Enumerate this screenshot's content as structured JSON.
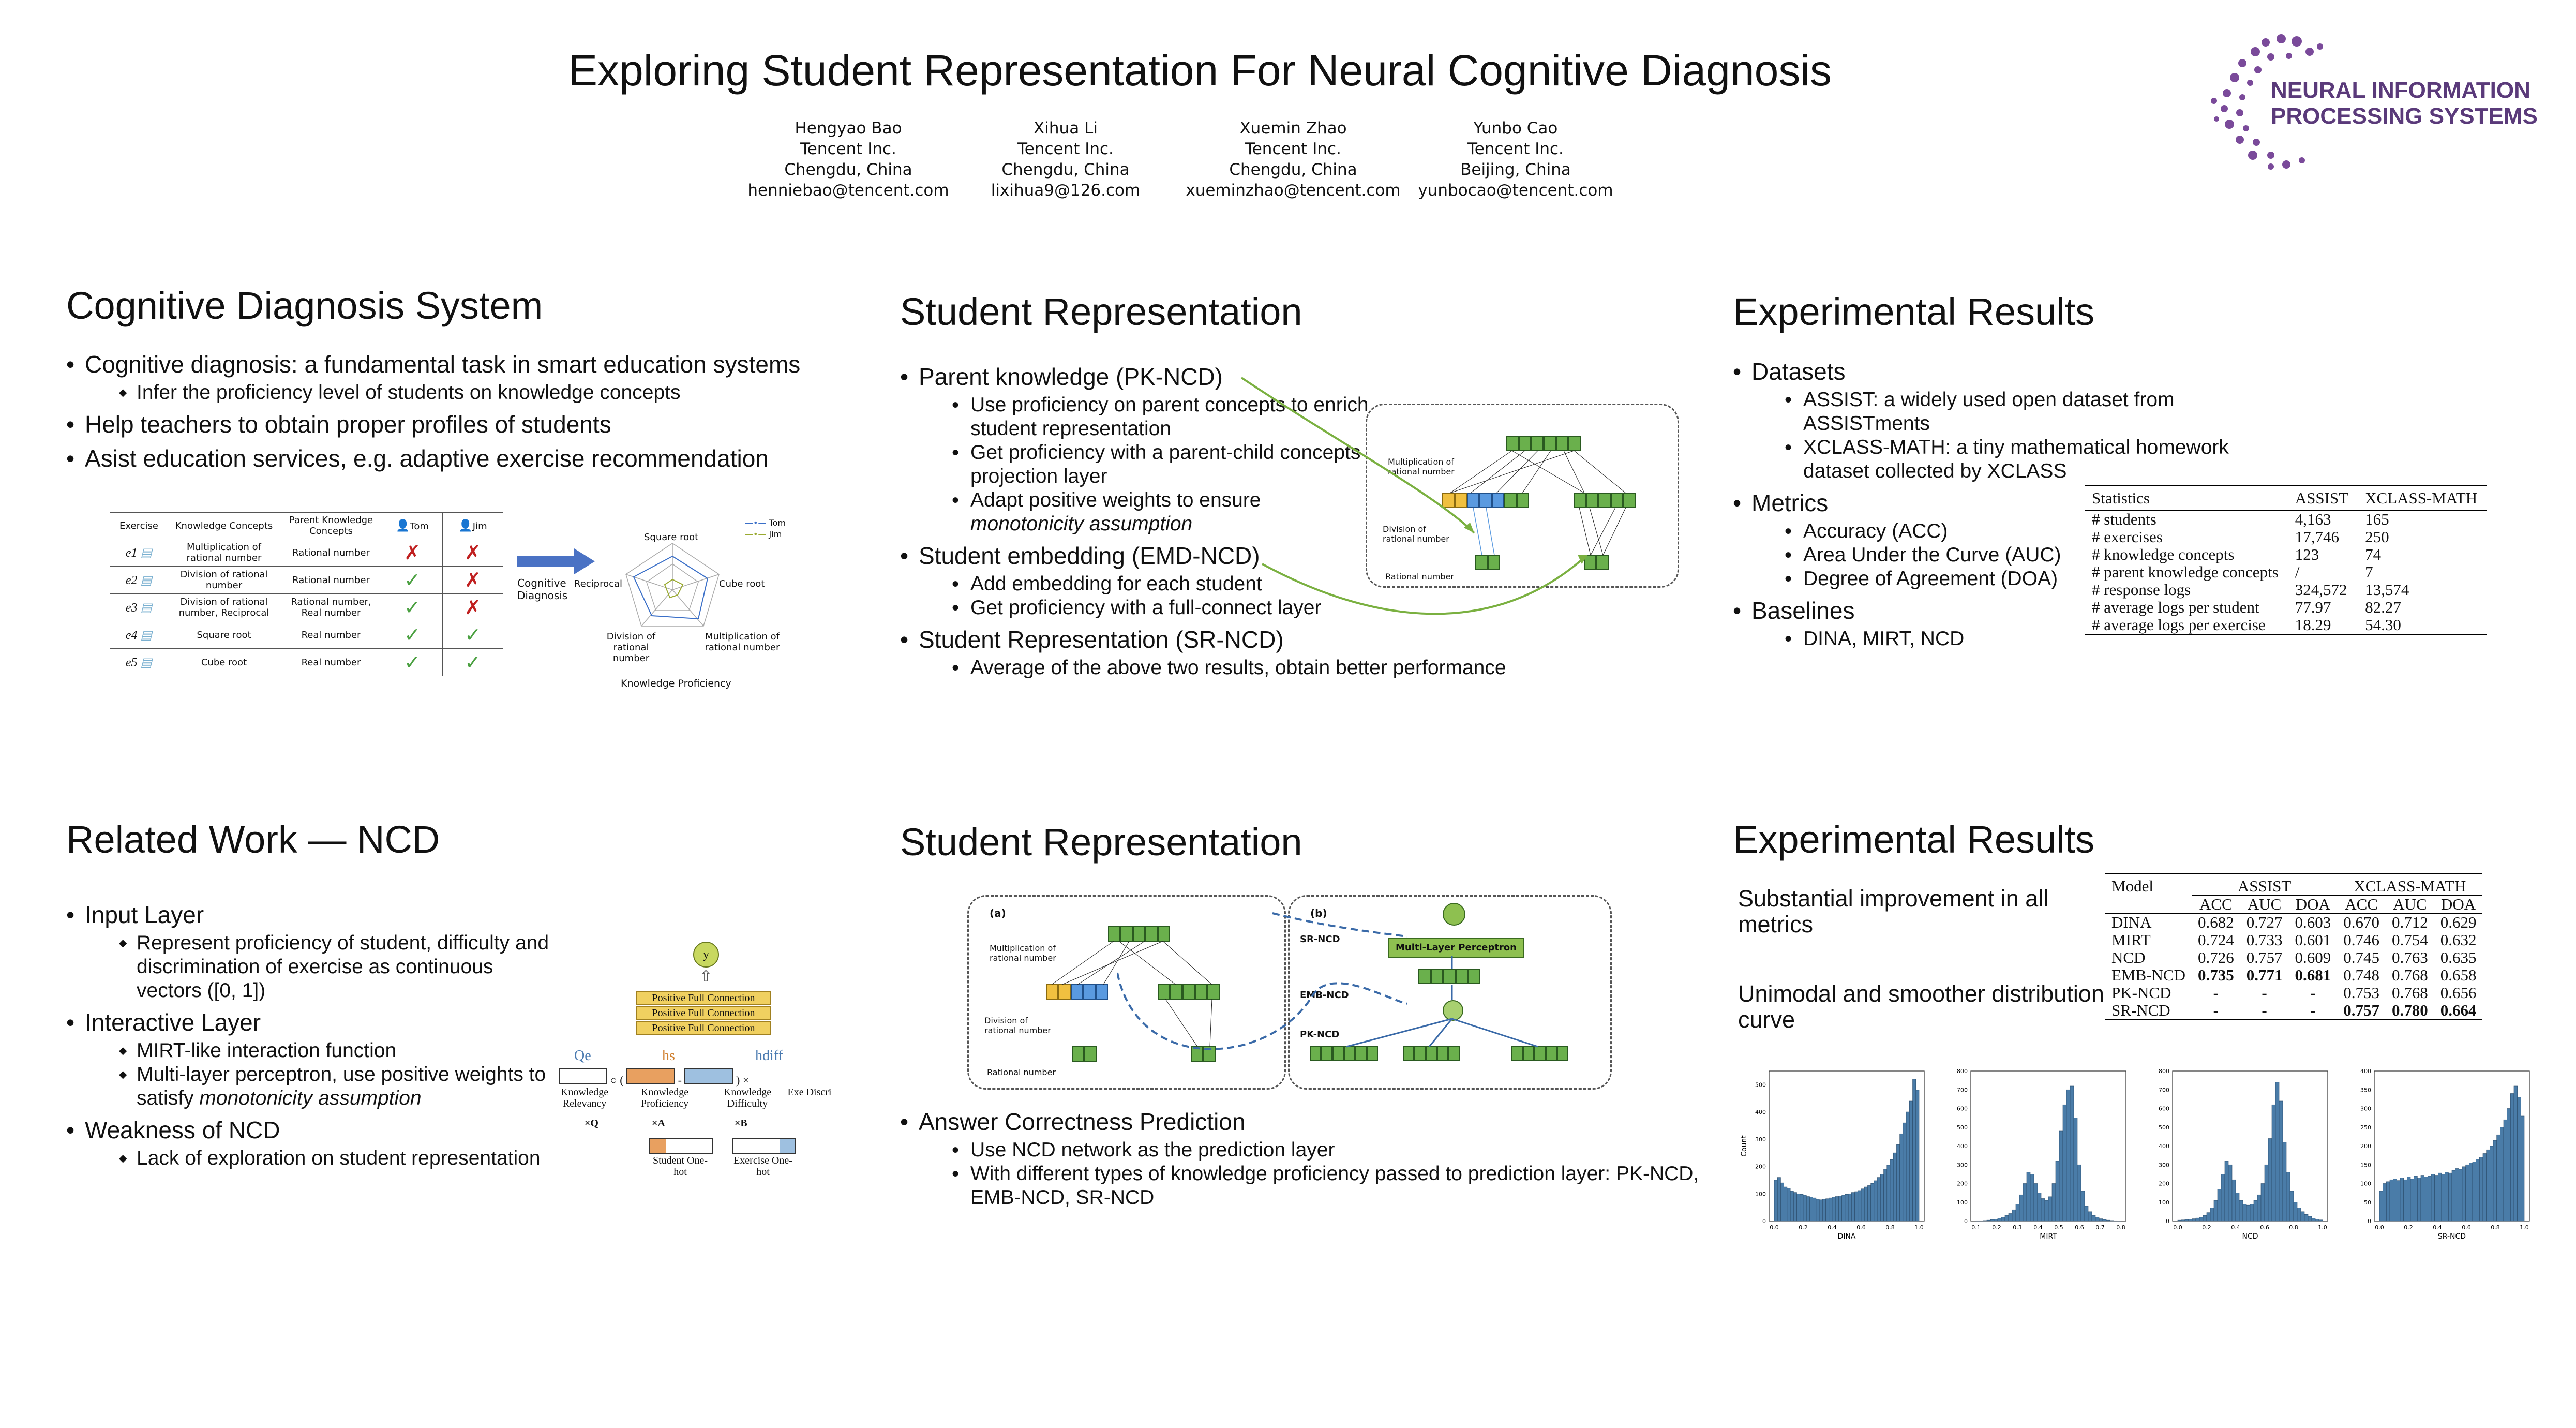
{
  "title": "Exploring Student Representation For Neural Cognitive Diagnosis",
  "authors": [
    {
      "name": "Hengyao Bao",
      "org": "Tencent Inc.",
      "city": "Chengdu, China",
      "email": "henniebao@tencent.com"
    },
    {
      "name": "Xihua Li",
      "org": "Tencent Inc.",
      "city": "Chengdu, China",
      "email": "lixihua9@126.com"
    },
    {
      "name": "Xuemin Zhao",
      "org": "Tencent Inc.",
      "city": "Chengdu, China",
      "email": "xueminzhao@tencent.com"
    },
    {
      "name": "Yunbo Cao",
      "org": "Tencent Inc.",
      "city": "Beijing, China",
      "email": "yunbocao@tencent.com"
    }
  ],
  "logo": {
    "line1": "NEURAL INFORMATION",
    "line2": "PROCESSING SYSTEMS",
    "color": "#7a4a9a"
  },
  "cds": {
    "heading": "Cognitive Diagnosis System",
    "b1": "Cognitive diagnosis: a fundamental task in smart education systems",
    "b1a": "Infer the proficiency level of students on knowledge concepts",
    "b2": "Help teachers to obtain proper profiles of students",
    "b3": "Asist education services, e.g. adaptive exercise recommendation",
    "table_headers": [
      "Exercise",
      "Knowledge Concepts",
      "Parent Knowledge Concepts",
      "Tom",
      "Jim"
    ],
    "table_rows": [
      {
        "ex": "e1",
        "kc": "Multiplication of rational number",
        "pkc": "Rational number",
        "tom": "✗",
        "jim": "✗"
      },
      {
        "ex": "e2",
        "kc": "Division of rational number",
        "pkc": "Rational number",
        "tom": "✓",
        "jim": "✗"
      },
      {
        "ex": "e3",
        "kc": "Division of rational number, Reciprocal",
        "pkc": "Rational number, Real number",
        "tom": "✓",
        "jim": "✗"
      },
      {
        "ex": "e4",
        "kc": "Square root",
        "pkc": "Real number",
        "tom": "✓",
        "jim": "✓"
      },
      {
        "ex": "e5",
        "kc": "Cube root",
        "pkc": "Real number",
        "tom": "✓",
        "jim": "✓"
      }
    ],
    "arrow_label": "Cognitive Diagnosis",
    "radar_axes": [
      "Square root",
      "Cube root",
      "Multiplication of rational number",
      "Division of rational number",
      "Reciprocal"
    ],
    "radar_legend": [
      "Tom",
      "Jim"
    ],
    "radar_caption": "Knowledge Proficiency"
  },
  "rw": {
    "heading": "Related Work — NCD",
    "input": "Input Layer",
    "input_a": "Represent proficiency of student, difficulty and discrimination of exercise as continuous vectors ([0, 1])",
    "inter": "Interactive Layer",
    "inter_a": "MIRT-like interaction function",
    "inter_b1": "Multi-layer perceptron, use positive weights to satisfy ",
    "inter_b2": "monotonicity assumption",
    "weak": "Weakness of NCD",
    "weak_a": "Lack of exploration on student representation",
    "diagram": {
      "y": "y",
      "pfc": "Positive Full Connection",
      "q": "Qe",
      "hs": "hs",
      "hdiff": "hdiff",
      "kr": "Knowledge Relevancy",
      "kp": "Knowledge Proficiency",
      "kd": "Knowledge Difficulty",
      "exd": "Exe Discri",
      "xq": "×Q",
      "xa": "×A",
      "xb": "×B",
      "so": "Student One-hot",
      "eo": "Exercise One-hot"
    }
  },
  "sr1": {
    "heading": "Student Representation",
    "pk": "Parent knowledge (PK-NCD)",
    "pk_a": "Use proficiency on parent concepts to enrich student representation",
    "pk_b": "Get proficiency with a parent-child concepts projection layer",
    "pk_c": "Adapt positive weights to ensure ",
    "pk_c2": "monotonicity assumption",
    "emb": "Student embedding (EMD-NCD)",
    "emb_a": "Add embedding for each student",
    "emb_b": "Get proficiency with a full-connect layer",
    "sr": "Student Representation (SR-NCD)",
    "sr_a": "Average of the above two results, obtain better performance",
    "fig_labels": [
      "Multiplication of rational number",
      "Division of rational number",
      "Rational number"
    ]
  },
  "sr2": {
    "heading": "Student Representation",
    "acp": "Answer Correctness Prediction",
    "acp_a": "Use NCD network as the prediction layer",
    "acp_b": "With different types of  knowledge proficiency passed to prediction layer: PK-NCD, EMB-NCD, SR-NCD",
    "fig": {
      "a": "(a)",
      "b": "(b)",
      "mlp": "Multi-Layer Perceptron",
      "srncd": "SR-NCD",
      "embncd": "EMB-NCD",
      "pkncd": "PK-NCD",
      "labels": [
        "Multiplication of rational number",
        "Division of rational number",
        "Rational number"
      ]
    }
  },
  "er1": {
    "heading": "Experimental Results",
    "datasets": "Datasets",
    "d_a": "ASSIST: a widely used open dataset from ASSISTments",
    "d_b": "XCLASS-MATH: a tiny mathematical homework dataset collected by XCLASS",
    "metrics": "Metrics",
    "m_a": "Accuracy (ACC)",
    "m_b": "Area Under the Curve (AUC)",
    "m_c": "Degree of Agreement (DOA)",
    "baselines": "Baselines",
    "b_a": "DINA, MIRT, NCD",
    "stats_headers": [
      "Statistics",
      "ASSIST",
      "XCLASS-MATH"
    ],
    "stats_rows": [
      [
        "# students",
        "4,163",
        "165"
      ],
      [
        "# exercises",
        "17,746",
        "250"
      ],
      [
        "# knowledge concepts",
        "123",
        "74"
      ],
      [
        "# parent knowledge concepts",
        "/",
        "7"
      ],
      [
        "# response logs",
        "324,572",
        "13,574"
      ],
      [
        "# average logs per student",
        "77.97",
        "82.27"
      ],
      [
        "# average logs per exercise",
        "18.29",
        "54.30"
      ]
    ]
  },
  "er2": {
    "heading": "Experimental Results",
    "p1": "Substantial improvement in all metrics",
    "p2": "Unimodal and smoother distribution curve",
    "res_model": "Model",
    "res_groups": [
      "ASSIST",
      "XCLASS-MATH"
    ],
    "res_sub": [
      "ACC",
      "AUC",
      "DOA",
      "ACC",
      "AUC",
      "DOA"
    ],
    "res_rows": [
      [
        "DINA",
        "0.682",
        "0.727",
        "0.603",
        "0.670",
        "0.712",
        "0.629"
      ],
      [
        "MIRT",
        "0.724",
        "0.733",
        "0.601",
        "0.746",
        "0.754",
        "0.632"
      ],
      [
        "NCD",
        "0.726",
        "0.757",
        "0.609",
        "0.745",
        "0.763",
        "0.635"
      ],
      [
        "EMB-NCD",
        "0.735",
        "0.771",
        "0.681",
        "0.748",
        "0.768",
        "0.658"
      ],
      [
        "PK-NCD",
        "-",
        "-",
        "-",
        "0.753",
        "0.768",
        "0.656"
      ],
      [
        "SR-NCD",
        "-",
        "-",
        "-",
        "0.757",
        "0.780",
        "0.664"
      ]
    ]
  },
  "chart_data": [
    {
      "type": "bar",
      "title": "",
      "xlabel": "DINA",
      "ylabel": "Count",
      "xlim": [
        0,
        1
      ],
      "ylim": [
        0,
        550
      ],
      "yticks": [
        0,
        100,
        200,
        300,
        400,
        500
      ],
      "xticks": [
        "0.0",
        "0.2",
        "0.4",
        "0.6",
        "0.8",
        "1.0"
      ],
      "color": "#4a7ca8",
      "values": [
        150,
        160,
        140,
        125,
        120,
        110,
        105,
        100,
        98,
        95,
        90,
        88,
        85,
        80,
        78,
        80,
        82,
        85,
        88,
        90,
        92,
        95,
        98,
        100,
        105,
        108,
        112,
        118,
        125,
        130,
        138,
        148,
        160,
        172,
        190,
        205,
        225,
        250,
        280,
        320,
        360,
        400,
        440,
        520,
        480
      ]
    },
    {
      "type": "bar",
      "title": "",
      "xlabel": "MIRT",
      "ylabel": "",
      "xlim": [
        0,
        0.8
      ],
      "ylim": [
        0,
        800
      ],
      "yticks": [
        0,
        100,
        200,
        300,
        400,
        500,
        600,
        700,
        800
      ],
      "xticks": [
        "0.1",
        "0.2",
        "0.3",
        "0.4",
        "0.5",
        "0.6",
        "0.7",
        "0.8"
      ],
      "color": "#4a7ca8",
      "values": [
        2,
        2,
        3,
        5,
        8,
        10,
        15,
        20,
        30,
        40,
        60,
        90,
        140,
        200,
        260,
        250,
        200,
        150,
        120,
        110,
        130,
        200,
        320,
        480,
        620,
        700,
        720,
        550,
        300,
        160,
        80,
        50,
        30,
        20,
        12,
        8,
        5,
        3,
        2,
        1
      ]
    },
    {
      "type": "bar",
      "title": "",
      "xlabel": "NCD",
      "ylabel": "",
      "xlim": [
        0,
        1
      ],
      "ylim": [
        0,
        800
      ],
      "yticks": [
        0,
        100,
        200,
        300,
        400,
        500,
        600,
        700,
        800
      ],
      "xticks": [
        "0.0",
        "0.2",
        "0.4",
        "0.6",
        "0.8",
        "1.0"
      ],
      "color": "#4a7ca8",
      "values": [
        5,
        6,
        8,
        10,
        12,
        16,
        20,
        30,
        45,
        70,
        110,
        170,
        250,
        320,
        300,
        220,
        150,
        110,
        90,
        85,
        90,
        110,
        140,
        200,
        300,
        440,
        620,
        740,
        640,
        420,
        260,
        160,
        100,
        70,
        50,
        35,
        25,
        15,
        10,
        6
      ]
    },
    {
      "type": "bar",
      "title": "",
      "xlabel": "SR-NCD",
      "ylabel": "",
      "xlim": [
        0,
        1
      ],
      "ylim": [
        0,
        400
      ],
      "yticks": [
        0,
        50,
        100,
        150,
        200,
        250,
        300,
        350,
        400
      ],
      "xticks": [
        "0.0",
        "0.2",
        "0.4",
        "0.6",
        "0.8",
        "1.0"
      ],
      "color": "#4a7ca8",
      "values": [
        80,
        100,
        105,
        110,
        112,
        108,
        115,
        110,
        118,
        112,
        120,
        115,
        122,
        118,
        120,
        125,
        122,
        128,
        125,
        130,
        128,
        135,
        140,
        138,
        145,
        150,
        155,
        158,
        165,
        170,
        180,
        190,
        200,
        215,
        230,
        250,
        270,
        300,
        340,
        360,
        330,
        280
      ]
    }
  ]
}
